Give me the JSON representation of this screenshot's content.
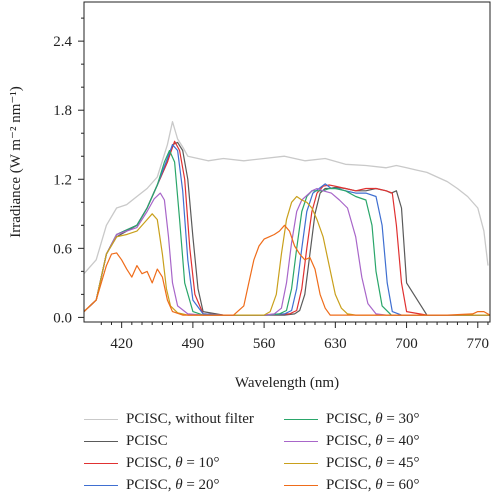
{
  "chart_data": {
    "type": "line",
    "xlabel": "Wavelength (nm)",
    "ylabel": "Irradiance (W m⁻² nm⁻¹)",
    "xlim": [
      383,
      782
    ],
    "ylim": [
      -0.04,
      2.74
    ],
    "xticks": [
      420,
      490,
      560,
      630,
      700,
      770
    ],
    "yticks": [
      0.0,
      0.6,
      1.2,
      1.8,
      2.4
    ],
    "ytick_labels": [
      "0.0",
      "0.6",
      "1.2",
      "1.8",
      "2.4"
    ],
    "grid": false,
    "legend_position": "bottom",
    "series": [
      {
        "name": "PCISC, without filter",
        "color": "#c9c9c9",
        "x": [
          383,
          395,
          405,
          415,
          425,
          435,
          445,
          455,
          465,
          470,
          475,
          480,
          485,
          495,
          505,
          520,
          540,
          560,
          580,
          600,
          620,
          640,
          660,
          680,
          690,
          700,
          710,
          720,
          730,
          740,
          750,
          760,
          770,
          776,
          780
        ],
        "y": [
          0.38,
          0.5,
          0.8,
          0.95,
          0.98,
          1.05,
          1.12,
          1.22,
          1.5,
          1.7,
          1.55,
          1.48,
          1.4,
          1.38,
          1.36,
          1.38,
          1.36,
          1.38,
          1.4,
          1.36,
          1.38,
          1.33,
          1.32,
          1.3,
          1.32,
          1.3,
          1.28,
          1.26,
          1.22,
          1.18,
          1.12,
          1.05,
          0.95,
          0.75,
          0.45
        ]
      },
      {
        "name": "PCISC",
        "color": "#5a5a5a",
        "x": [
          383,
          395,
          405,
          415,
          425,
          435,
          445,
          455,
          465,
          470,
          475,
          480,
          485,
          490,
          495,
          500,
          520,
          540,
          560,
          580,
          590,
          595,
          600,
          605,
          610,
          615,
          620,
          625,
          630,
          640,
          650,
          660,
          670,
          680,
          685,
          690,
          695,
          700,
          720,
          750,
          782
        ],
        "y": [
          0.05,
          0.15,
          0.55,
          0.7,
          0.75,
          0.8,
          0.95,
          1.15,
          1.35,
          1.5,
          1.52,
          1.45,
          1.2,
          0.7,
          0.25,
          0.05,
          0.02,
          0.02,
          0.02,
          0.02,
          0.03,
          0.06,
          0.2,
          0.55,
          0.9,
          1.08,
          1.12,
          1.12,
          1.13,
          1.12,
          1.1,
          1.1,
          1.12,
          1.1,
          1.08,
          1.1,
          0.95,
          0.3,
          0.02,
          0.02,
          0.02
        ]
      },
      {
        "name": "PCISC, θ = 10°",
        "color": "#e03131",
        "x": [
          383,
          395,
          405,
          415,
          425,
          435,
          445,
          455,
          465,
          472,
          477,
          482,
          487,
          492,
          500,
          520,
          560,
          585,
          592,
          597,
          602,
          607,
          612,
          618,
          624,
          630,
          640,
          650,
          660,
          670,
          680,
          686,
          690,
          695,
          700,
          720,
          782
        ],
        "y": [
          0.05,
          0.15,
          0.55,
          0.72,
          0.76,
          0.8,
          0.95,
          1.15,
          1.35,
          1.53,
          1.45,
          1.2,
          0.6,
          0.2,
          0.03,
          0.02,
          0.02,
          0.03,
          0.06,
          0.25,
          0.6,
          0.92,
          1.08,
          1.14,
          1.15,
          1.14,
          1.12,
          1.1,
          1.12,
          1.12,
          1.1,
          1.08,
          0.8,
          0.3,
          0.05,
          0.02,
          0.02
        ]
      },
      {
        "name": "PCISC, θ = 20°",
        "color": "#3f6fd1",
        "x": [
          383,
          395,
          405,
          415,
          425,
          435,
          445,
          455,
          465,
          470,
          475,
          480,
          485,
          490,
          500,
          520,
          560,
          580,
          587,
          592,
          597,
          602,
          608,
          614,
          620,
          626,
          632,
          640,
          650,
          660,
          670,
          676,
          681,
          686,
          695,
          720,
          782
        ],
        "y": [
          0.05,
          0.15,
          0.55,
          0.72,
          0.76,
          0.8,
          0.95,
          1.15,
          1.38,
          1.5,
          1.45,
          1.1,
          0.5,
          0.15,
          0.03,
          0.02,
          0.02,
          0.03,
          0.06,
          0.25,
          0.6,
          0.92,
          1.08,
          1.12,
          1.16,
          1.12,
          1.12,
          1.1,
          1.08,
          1.08,
          1.05,
          0.8,
          0.3,
          0.05,
          0.02,
          0.02,
          0.02
        ]
      },
      {
        "name": "PCISC, θ = 30°",
        "color": "#2aa66a",
        "x": [
          383,
          395,
          405,
          415,
          425,
          435,
          445,
          455,
          462,
          467,
          472,
          477,
          482,
          490,
          500,
          560,
          575,
          582,
          587,
          592,
          597,
          602,
          607,
          612,
          618,
          624,
          630,
          640,
          650,
          660,
          666,
          670,
          676,
          685,
          720,
          782
        ],
        "y": [
          0.05,
          0.15,
          0.55,
          0.72,
          0.76,
          0.8,
          0.95,
          1.15,
          1.35,
          1.45,
          1.35,
          0.85,
          0.3,
          0.05,
          0.02,
          0.02,
          0.03,
          0.06,
          0.25,
          0.6,
          0.92,
          1.05,
          1.1,
          1.1,
          1.1,
          1.12,
          1.12,
          1.1,
          1.05,
          1.02,
          0.8,
          0.4,
          0.1,
          0.02,
          0.02,
          0.02
        ]
      },
      {
        "name": "PCISC, θ = 40°",
        "color": "#a866c9",
        "x": [
          383,
          395,
          405,
          415,
          425,
          435,
          445,
          452,
          458,
          462,
          466,
          470,
          475,
          485,
          500,
          560,
          570,
          577,
          582,
          587,
          592,
          597,
          602,
          607,
          612,
          618,
          626,
          634,
          642,
          650,
          656,
          662,
          670,
          680,
          720,
          782
        ],
        "y": [
          0.05,
          0.15,
          0.55,
          0.72,
          0.75,
          0.78,
          0.92,
          1.03,
          1.08,
          1.02,
          0.7,
          0.3,
          0.1,
          0.03,
          0.02,
          0.02,
          0.03,
          0.08,
          0.3,
          0.65,
          0.92,
          1.02,
          1.06,
          1.1,
          1.12,
          1.1,
          1.08,
          1.02,
          0.95,
          0.7,
          0.35,
          0.12,
          0.03,
          0.02,
          0.02,
          0.02
        ]
      },
      {
        "name": "PCISC, θ = 45°",
        "color": "#c9a01c",
        "x": [
          383,
          395,
          405,
          415,
          425,
          435,
          445,
          450,
          455,
          460,
          464,
          468,
          475,
          485,
          500,
          560,
          566,
          572,
          577,
          582,
          587,
          592,
          597,
          602,
          607,
          612,
          618,
          624,
          630,
          636,
          642,
          650,
          660,
          720,
          782
        ],
        "y": [
          0.05,
          0.15,
          0.55,
          0.7,
          0.72,
          0.75,
          0.85,
          0.9,
          0.85,
          0.55,
          0.25,
          0.1,
          0.04,
          0.02,
          0.02,
          0.02,
          0.05,
          0.2,
          0.55,
          0.85,
          1.0,
          1.05,
          1.02,
          1.0,
          0.95,
          0.85,
          0.7,
          0.45,
          0.2,
          0.08,
          0.03,
          0.02,
          0.02,
          0.02,
          0.02
        ]
      },
      {
        "name": "PCISC, θ = 60°",
        "color": "#ef6c1a",
        "x": [
          383,
          395,
          405,
          410,
          415,
          420,
          425,
          430,
          435,
          440,
          445,
          450,
          455,
          460,
          465,
          470,
          480,
          500,
          520,
          530,
          540,
          545,
          550,
          555,
          560,
          565,
          570,
          575,
          580,
          585,
          590,
          595,
          600,
          605,
          610,
          615,
          620,
          625,
          630,
          640,
          660,
          700,
          740,
          765,
          770,
          776,
          782
        ],
        "y": [
          0.05,
          0.15,
          0.45,
          0.55,
          0.56,
          0.5,
          0.42,
          0.35,
          0.45,
          0.38,
          0.4,
          0.3,
          0.42,
          0.35,
          0.15,
          0.05,
          0.02,
          0.02,
          0.02,
          0.02,
          0.1,
          0.3,
          0.5,
          0.62,
          0.68,
          0.7,
          0.72,
          0.75,
          0.8,
          0.75,
          0.62,
          0.55,
          0.5,
          0.52,
          0.42,
          0.2,
          0.08,
          0.02,
          0.02,
          0.02,
          0.02,
          0.02,
          0.02,
          0.03,
          0.05,
          0.05,
          0.02
        ]
      }
    ]
  },
  "legend": {
    "items": [
      {
        "prefix": "PCISC, without filter",
        "theta": "",
        "suffix": "",
        "color": "#c9c9c9"
      },
      {
        "prefix": "PCISC, ",
        "theta": "θ",
        "suffix": " = 30°",
        "color": "#2aa66a"
      },
      {
        "prefix": "PCISC",
        "theta": "",
        "suffix": "",
        "color": "#5a5a5a"
      },
      {
        "prefix": "PCISC, ",
        "theta": "θ",
        "suffix": " = 40°",
        "color": "#a866c9"
      },
      {
        "prefix": "PCISC, ",
        "theta": "θ",
        "suffix": " = 10°",
        "color": "#e03131"
      },
      {
        "prefix": "PCISC, ",
        "theta": "θ",
        "suffix": " = 45°",
        "color": "#c9a01c"
      },
      {
        "prefix": "PCISC, ",
        "theta": "θ",
        "suffix": " = 20°",
        "color": "#3f6fd1"
      },
      {
        "prefix": "PCISC, ",
        "theta": "θ",
        "suffix": " = 60°",
        "color": "#ef6c1a"
      }
    ]
  }
}
